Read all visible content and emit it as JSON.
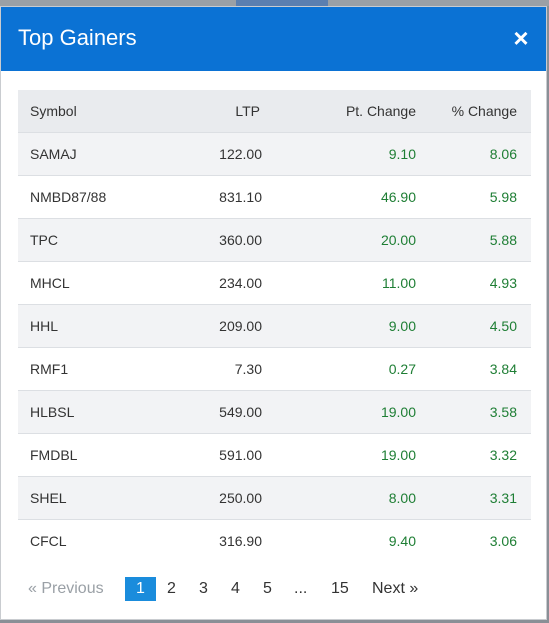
{
  "modal": {
    "title": "Top Gainers",
    "close_label": "×"
  },
  "table": {
    "headers": [
      "Symbol",
      "LTP",
      "Pt. Change",
      "% Change"
    ],
    "rows": [
      {
        "symbol": "SAMAJ",
        "ltp": "122.00",
        "pt_change": "9.10",
        "pct_change": "8.06"
      },
      {
        "symbol": "NMBD87/88",
        "ltp": "831.10",
        "pt_change": "46.90",
        "pct_change": "5.98"
      },
      {
        "symbol": "TPC",
        "ltp": "360.00",
        "pt_change": "20.00",
        "pct_change": "5.88"
      },
      {
        "symbol": "MHCL",
        "ltp": "234.00",
        "pt_change": "11.00",
        "pct_change": "4.93"
      },
      {
        "symbol": "HHL",
        "ltp": "209.00",
        "pt_change": "9.00",
        "pct_change": "4.50"
      },
      {
        "symbol": "RMF1",
        "ltp": "7.30",
        "pt_change": "0.27",
        "pct_change": "3.84"
      },
      {
        "symbol": "HLBSL",
        "ltp": "549.00",
        "pt_change": "19.00",
        "pct_change": "3.58"
      },
      {
        "symbol": "FMDBL",
        "ltp": "591.00",
        "pt_change": "19.00",
        "pct_change": "3.32"
      },
      {
        "symbol": "SHEL",
        "ltp": "250.00",
        "pt_change": "8.00",
        "pct_change": "3.31"
      },
      {
        "symbol": "CFCL",
        "ltp": "316.90",
        "pt_change": "9.40",
        "pct_change": "3.06"
      }
    ]
  },
  "pagination": {
    "previous_label": "«  Previous",
    "pages": [
      "1",
      "2",
      "3",
      "4",
      "5",
      "...",
      "15"
    ],
    "next_label": "Next  »",
    "current_page": "1"
  },
  "colors": {
    "header_bg": "#0b72d4",
    "gain_text": "#1e7e34",
    "active_page": "#1a8cdc"
  }
}
